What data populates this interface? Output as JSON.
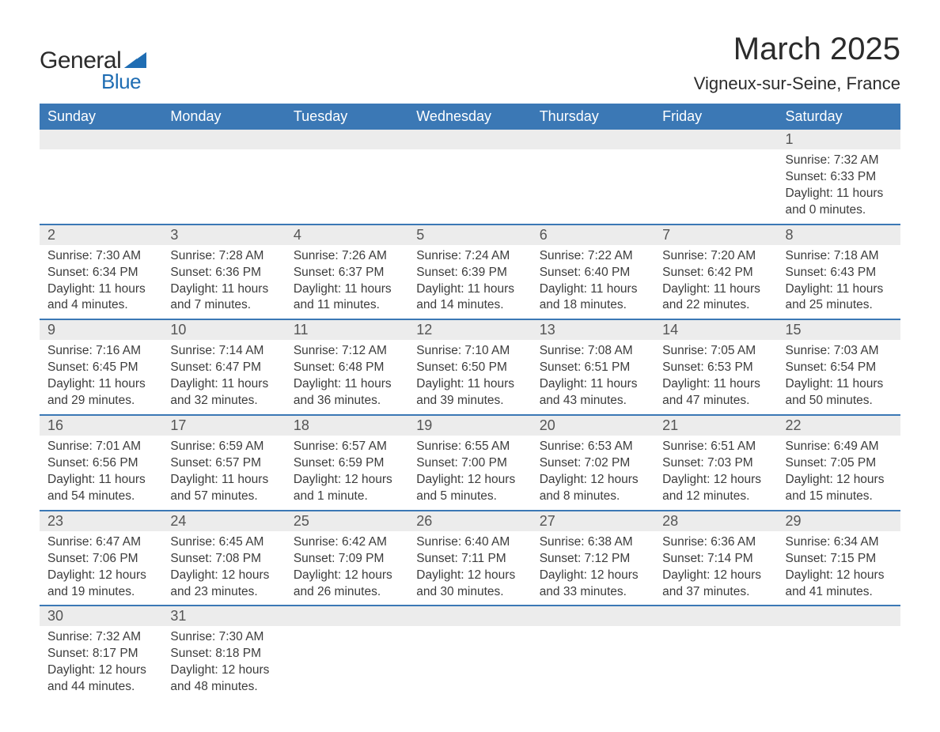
{
  "branding": {
    "name_part1": "General",
    "name_part2": "Blue",
    "logo_color": "#1f6db3",
    "text_color": "#2b2b2b"
  },
  "title": {
    "month": "March 2025",
    "location": "Vigneux-sur-Seine, France",
    "month_fontsize": 40,
    "location_fontsize": 22
  },
  "styling": {
    "header_bg": "#3b78b5",
    "header_text_color": "#ffffff",
    "header_fontsize": 18,
    "daynum_bg": "#ececec",
    "daynum_fontsize": 18,
    "daynum_color": "#555555",
    "week_divider_color": "#3b78b5",
    "body_fontsize": 15.5,
    "body_text_color": "#3c3c3c",
    "page_bg": "#ffffff"
  },
  "days_header": [
    "Sunday",
    "Monday",
    "Tuesday",
    "Wednesday",
    "Thursday",
    "Friday",
    "Saturday"
  ],
  "weeks": [
    [
      {
        "n": "",
        "sr": "",
        "ss": "",
        "dl": ""
      },
      {
        "n": "",
        "sr": "",
        "ss": "",
        "dl": ""
      },
      {
        "n": "",
        "sr": "",
        "ss": "",
        "dl": ""
      },
      {
        "n": "",
        "sr": "",
        "ss": "",
        "dl": ""
      },
      {
        "n": "",
        "sr": "",
        "ss": "",
        "dl": ""
      },
      {
        "n": "",
        "sr": "",
        "ss": "",
        "dl": ""
      },
      {
        "n": "1",
        "sr": "Sunrise: 7:32 AM",
        "ss": "Sunset: 6:33 PM",
        "dl": "Daylight: 11 hours and 0 minutes."
      }
    ],
    [
      {
        "n": "2",
        "sr": "Sunrise: 7:30 AM",
        "ss": "Sunset: 6:34 PM",
        "dl": "Daylight: 11 hours and 4 minutes."
      },
      {
        "n": "3",
        "sr": "Sunrise: 7:28 AM",
        "ss": "Sunset: 6:36 PM",
        "dl": "Daylight: 11 hours and 7 minutes."
      },
      {
        "n": "4",
        "sr": "Sunrise: 7:26 AM",
        "ss": "Sunset: 6:37 PM",
        "dl": "Daylight: 11 hours and 11 minutes."
      },
      {
        "n": "5",
        "sr": "Sunrise: 7:24 AM",
        "ss": "Sunset: 6:39 PM",
        "dl": "Daylight: 11 hours and 14 minutes."
      },
      {
        "n": "6",
        "sr": "Sunrise: 7:22 AM",
        "ss": "Sunset: 6:40 PM",
        "dl": "Daylight: 11 hours and 18 minutes."
      },
      {
        "n": "7",
        "sr": "Sunrise: 7:20 AM",
        "ss": "Sunset: 6:42 PM",
        "dl": "Daylight: 11 hours and 22 minutes."
      },
      {
        "n": "8",
        "sr": "Sunrise: 7:18 AM",
        "ss": "Sunset: 6:43 PM",
        "dl": "Daylight: 11 hours and 25 minutes."
      }
    ],
    [
      {
        "n": "9",
        "sr": "Sunrise: 7:16 AM",
        "ss": "Sunset: 6:45 PM",
        "dl": "Daylight: 11 hours and 29 minutes."
      },
      {
        "n": "10",
        "sr": "Sunrise: 7:14 AM",
        "ss": "Sunset: 6:47 PM",
        "dl": "Daylight: 11 hours and 32 minutes."
      },
      {
        "n": "11",
        "sr": "Sunrise: 7:12 AM",
        "ss": "Sunset: 6:48 PM",
        "dl": "Daylight: 11 hours and 36 minutes."
      },
      {
        "n": "12",
        "sr": "Sunrise: 7:10 AM",
        "ss": "Sunset: 6:50 PM",
        "dl": "Daylight: 11 hours and 39 minutes."
      },
      {
        "n": "13",
        "sr": "Sunrise: 7:08 AM",
        "ss": "Sunset: 6:51 PM",
        "dl": "Daylight: 11 hours and 43 minutes."
      },
      {
        "n": "14",
        "sr": "Sunrise: 7:05 AM",
        "ss": "Sunset: 6:53 PM",
        "dl": "Daylight: 11 hours and 47 minutes."
      },
      {
        "n": "15",
        "sr": "Sunrise: 7:03 AM",
        "ss": "Sunset: 6:54 PM",
        "dl": "Daylight: 11 hours and 50 minutes."
      }
    ],
    [
      {
        "n": "16",
        "sr": "Sunrise: 7:01 AM",
        "ss": "Sunset: 6:56 PM",
        "dl": "Daylight: 11 hours and 54 minutes."
      },
      {
        "n": "17",
        "sr": "Sunrise: 6:59 AM",
        "ss": "Sunset: 6:57 PM",
        "dl": "Daylight: 11 hours and 57 minutes."
      },
      {
        "n": "18",
        "sr": "Sunrise: 6:57 AM",
        "ss": "Sunset: 6:59 PM",
        "dl": "Daylight: 12 hours and 1 minute."
      },
      {
        "n": "19",
        "sr": "Sunrise: 6:55 AM",
        "ss": "Sunset: 7:00 PM",
        "dl": "Daylight: 12 hours and 5 minutes."
      },
      {
        "n": "20",
        "sr": "Sunrise: 6:53 AM",
        "ss": "Sunset: 7:02 PM",
        "dl": "Daylight: 12 hours and 8 minutes."
      },
      {
        "n": "21",
        "sr": "Sunrise: 6:51 AM",
        "ss": "Sunset: 7:03 PM",
        "dl": "Daylight: 12 hours and 12 minutes."
      },
      {
        "n": "22",
        "sr": "Sunrise: 6:49 AM",
        "ss": "Sunset: 7:05 PM",
        "dl": "Daylight: 12 hours and 15 minutes."
      }
    ],
    [
      {
        "n": "23",
        "sr": "Sunrise: 6:47 AM",
        "ss": "Sunset: 7:06 PM",
        "dl": "Daylight: 12 hours and 19 minutes."
      },
      {
        "n": "24",
        "sr": "Sunrise: 6:45 AM",
        "ss": "Sunset: 7:08 PM",
        "dl": "Daylight: 12 hours and 23 minutes."
      },
      {
        "n": "25",
        "sr": "Sunrise: 6:42 AM",
        "ss": "Sunset: 7:09 PM",
        "dl": "Daylight: 12 hours and 26 minutes."
      },
      {
        "n": "26",
        "sr": "Sunrise: 6:40 AM",
        "ss": "Sunset: 7:11 PM",
        "dl": "Daylight: 12 hours and 30 minutes."
      },
      {
        "n": "27",
        "sr": "Sunrise: 6:38 AM",
        "ss": "Sunset: 7:12 PM",
        "dl": "Daylight: 12 hours and 33 minutes."
      },
      {
        "n": "28",
        "sr": "Sunrise: 6:36 AM",
        "ss": "Sunset: 7:14 PM",
        "dl": "Daylight: 12 hours and 37 minutes."
      },
      {
        "n": "29",
        "sr": "Sunrise: 6:34 AM",
        "ss": "Sunset: 7:15 PM",
        "dl": "Daylight: 12 hours and 41 minutes."
      }
    ],
    [
      {
        "n": "30",
        "sr": "Sunrise: 7:32 AM",
        "ss": "Sunset: 8:17 PM",
        "dl": "Daylight: 12 hours and 44 minutes."
      },
      {
        "n": "31",
        "sr": "Sunrise: 7:30 AM",
        "ss": "Sunset: 8:18 PM",
        "dl": "Daylight: 12 hours and 48 minutes."
      },
      {
        "n": "",
        "sr": "",
        "ss": "",
        "dl": ""
      },
      {
        "n": "",
        "sr": "",
        "ss": "",
        "dl": ""
      },
      {
        "n": "",
        "sr": "",
        "ss": "",
        "dl": ""
      },
      {
        "n": "",
        "sr": "",
        "ss": "",
        "dl": ""
      },
      {
        "n": "",
        "sr": "",
        "ss": "",
        "dl": ""
      }
    ]
  ]
}
